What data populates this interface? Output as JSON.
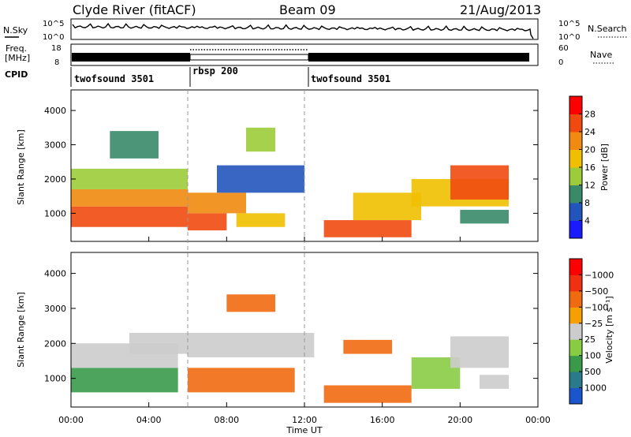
{
  "header": {
    "station": "Clyde River (fitACF)",
    "beam": "Beam 09",
    "date": "21/Aug/2013"
  },
  "noise_panel": {
    "left_label": "N.Sky",
    "left_ticks": [
      "10^5",
      "10^0"
    ],
    "right_label": "N.Search",
    "right_ticks": [
      "10^5",
      "10^0"
    ]
  },
  "freq_panel": {
    "left_label_line1": "Freq.",
    "left_label_line2": "[MHz]",
    "left_ticks": [
      "18",
      "8"
    ],
    "right_label": "Nave",
    "right_ticks": [
      "60",
      "0"
    ]
  },
  "cpid": {
    "label": "CPID",
    "segments": [
      {
        "name": "twofsound 3501",
        "start_h": 0,
        "end_h": 6
      },
      {
        "name": "rbsp 200",
        "start_h": 6,
        "end_h": 12
      },
      {
        "name": "twofsound 3501",
        "start_h": 12,
        "end_h": 24
      }
    ]
  },
  "time_axis": {
    "label": "Time UT",
    "range_h": [
      0,
      24
    ],
    "ticks": [
      {
        "h": 0,
        "label": "00:00"
      },
      {
        "h": 4,
        "label": "04:00"
      },
      {
        "h": 8,
        "label": "08:00"
      },
      {
        "h": 12,
        "label": "12:00"
      },
      {
        "h": 16,
        "label": "16:00"
      },
      {
        "h": 20,
        "label": "20:00"
      },
      {
        "h": 24,
        "label": "00:00"
      }
    ]
  },
  "chart_data": [
    {
      "type": "heatmap",
      "name": "power",
      "ylabel": "Slant Range [km]",
      "ylim": [
        180,
        4600
      ],
      "yticks": [
        1000,
        2000,
        3000,
        4000
      ],
      "colorbar": {
        "label": "Power [dB]",
        "tick_labels": [
          "4",
          "8",
          "12",
          "16",
          "20",
          "24",
          "28"
        ],
        "colors": [
          "#1a1aff",
          "#2255bb",
          "#3a8a6a",
          "#9ccc3a",
          "#f0c000",
          "#f08a10",
          "#f04a10",
          "#ff0000"
        ]
      },
      "bands": [
        {
          "t0": 0.0,
          "t1": 6.0,
          "r0": 600,
          "r1": 1200,
          "v": 26
        },
        {
          "t0": 0.0,
          "t1": 6.0,
          "r0": 1200,
          "r1": 1700,
          "v": 20
        },
        {
          "t0": 0.0,
          "t1": 6.0,
          "r0": 1700,
          "r1": 2300,
          "v": 14
        },
        {
          "t0": 2.0,
          "t1": 4.5,
          "r0": 2600,
          "r1": 3400,
          "v": 10
        },
        {
          "t0": 6.0,
          "t1": 8.0,
          "r0": 500,
          "r1": 1000,
          "v": 26
        },
        {
          "t0": 6.0,
          "t1": 9.0,
          "r0": 1000,
          "r1": 1600,
          "v": 22
        },
        {
          "t0": 7.5,
          "t1": 12.0,
          "r0": 1600,
          "r1": 2400,
          "v": 6
        },
        {
          "t0": 8.5,
          "t1": 11.0,
          "r0": 600,
          "r1": 1000,
          "v": 18
        },
        {
          "t0": 9.0,
          "t1": 10.5,
          "r0": 2800,
          "r1": 3500,
          "v": 14
        },
        {
          "t0": 13.0,
          "t1": 17.5,
          "r0": 300,
          "r1": 800,
          "v": 26
        },
        {
          "t0": 14.5,
          "t1": 18.0,
          "r0": 800,
          "r1": 1600,
          "v": 18
        },
        {
          "t0": 17.5,
          "t1": 22.5,
          "r0": 1200,
          "r1": 2000,
          "v": 16
        },
        {
          "t0": 19.5,
          "t1": 22.5,
          "r0": 1400,
          "r1": 2400,
          "v": 24
        },
        {
          "t0": 20.0,
          "t1": 22.5,
          "r0": 700,
          "r1": 1100,
          "v": 10
        }
      ]
    },
    {
      "type": "heatmap",
      "name": "velocity",
      "ylabel": "Slant Range [km]",
      "ylim": [
        180,
        4600
      ],
      "yticks": [
        1000,
        2000,
        3000,
        4000
      ],
      "colorbar": {
        "label": "Velocity [m s⁻¹]",
        "tick_labels": [
          "1000",
          "500",
          "100",
          "25",
          "−25",
          "−100",
          "−500",
          "−1000"
        ],
        "colors": [
          "#1a55cc",
          "#2a7a8a",
          "#3a9a4a",
          "#88cc44",
          "#cccccc",
          "#f5a000",
          "#f06a10",
          "#f03010",
          "#ff0000"
        ]
      },
      "bands": [
        {
          "t0": 0.0,
          "t1": 5.5,
          "r0": 600,
          "r1": 1300,
          "v": 300
        },
        {
          "t0": 0.0,
          "t1": 5.5,
          "r0": 1300,
          "r1": 2000,
          "v": 0
        },
        {
          "t0": 3.0,
          "t1": 6.0,
          "r0": 1700,
          "r1": 2300,
          "v": 0
        },
        {
          "t0": 6.0,
          "t1": 11.5,
          "r0": 600,
          "r1": 1300,
          "v": -200
        },
        {
          "t0": 6.0,
          "t1": 12.5,
          "r0": 1600,
          "r1": 2300,
          "v": 0
        },
        {
          "t0": 8.0,
          "t1": 10.5,
          "r0": 2900,
          "r1": 3400,
          "v": -200
        },
        {
          "t0": 13.0,
          "t1": 17.5,
          "r0": 300,
          "r1": 800,
          "v": -200
        },
        {
          "t0": 14.0,
          "t1": 16.5,
          "r0": 1700,
          "r1": 2100,
          "v": -200
        },
        {
          "t0": 17.5,
          "t1": 20.0,
          "r0": 700,
          "r1": 1600,
          "v": 50
        },
        {
          "t0": 19.5,
          "t1": 22.5,
          "r0": 1300,
          "r1": 2200,
          "v": 0
        },
        {
          "t0": 21.0,
          "t1": 22.5,
          "r0": 700,
          "r1": 1100,
          "v": 0
        }
      ]
    }
  ]
}
